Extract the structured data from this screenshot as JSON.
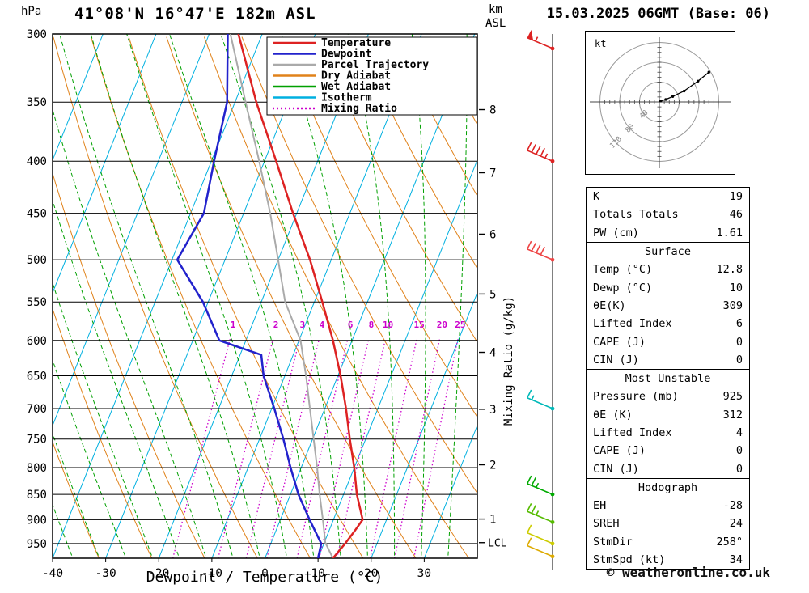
{
  "header": {
    "station_title": "41°08'N 16°47'E 182m ASL",
    "run_datetime": "15.03.2025 06GMT (Base: 06)",
    "pressure_axis_unit": "hPa",
    "altitude_axis_unit_line1": "km",
    "altitude_axis_unit_line2": "ASL"
  },
  "axes": {
    "xlabel": "Dewpoint / Temperature (°C)",
    "mixing_ratio_axis_label": "Mixing Ratio (g/kg)",
    "lcl_label": "LCL"
  },
  "colors": {
    "temperature": "#dd2222",
    "dewpoint": "#2222cc",
    "parcel": "#aaaaaa",
    "dry_adiabat": "#e0821a",
    "wet_adiabat": "#00a000",
    "isotherm": "#00b0e0",
    "mixing_ratio": "#cc00cc",
    "grid": "#000000"
  },
  "legend": {
    "items": [
      {
        "label": "Temperature",
        "color": "#dd2222",
        "dash": ""
      },
      {
        "label": "Dewpoint",
        "color": "#2222cc",
        "dash": ""
      },
      {
        "label": "Parcel Trajectory",
        "color": "#aaaaaa",
        "dash": ""
      },
      {
        "label": "Dry Adiabat",
        "color": "#e0821a",
        "dash": ""
      },
      {
        "label": "Wet Adiabat",
        "color": "#00a000",
        "dash": ""
      },
      {
        "label": "Isotherm",
        "color": "#00b0e0",
        "dash": ""
      },
      {
        "label": "Mixing Ratio",
        "color": "#cc00cc",
        "dash": "2,3"
      }
    ]
  },
  "chart_data": {
    "type": "line",
    "subtype": "skewt-log-p-sounding",
    "surface_pressure": 982,
    "pressure_ticks": [
      300,
      350,
      400,
      450,
      500,
      550,
      600,
      650,
      700,
      750,
      800,
      850,
      900,
      950
    ],
    "temp_axis": {
      "min": -40,
      "max": 40,
      "ticks": [
        -40,
        -30,
        -20,
        -10,
        0,
        10,
        20,
        30
      ]
    },
    "km_ticks": [
      1,
      2,
      3,
      4,
      5,
      6,
      7,
      8
    ],
    "lcl_pressure": 948,
    "mixing_ratio_lines": [
      1,
      2,
      3,
      4,
      6,
      8,
      10,
      15,
      20,
      25
    ],
    "temperature_profile": [
      [
        982,
        12.8
      ],
      [
        950,
        14
      ],
      [
        925,
        14.8
      ],
      [
        900,
        15.5
      ],
      [
        850,
        12.5
      ],
      [
        800,
        10
      ],
      [
        750,
        7
      ],
      [
        700,
        4
      ],
      [
        650,
        0.5
      ],
      [
        600,
        -3.6
      ],
      [
        550,
        -8.5
      ],
      [
        500,
        -14
      ],
      [
        450,
        -20.7
      ],
      [
        400,
        -27.8
      ],
      [
        350,
        -36
      ],
      [
        300,
        -44.5
      ]
    ],
    "dewpoint_profile": [
      [
        982,
        10
      ],
      [
        950,
        9.5
      ],
      [
        900,
        5.5
      ],
      [
        850,
        1.5
      ],
      [
        800,
        -2
      ],
      [
        750,
        -5.5
      ],
      [
        700,
        -9.5
      ],
      [
        650,
        -14
      ],
      [
        620,
        -16
      ],
      [
        600,
        -25
      ],
      [
        550,
        -31
      ],
      [
        500,
        -39
      ],
      [
        450,
        -37.5
      ],
      [
        400,
        -39.5
      ],
      [
        350,
        -41.5
      ],
      [
        300,
        -46.5
      ]
    ],
    "parcel_profile": [
      [
        982,
        12.8
      ],
      [
        948,
        10.2
      ],
      [
        900,
        8
      ],
      [
        850,
        5.5
      ],
      [
        800,
        3
      ],
      [
        750,
        0.2
      ],
      [
        700,
        -2.8
      ],
      [
        650,
        -6
      ],
      [
        600,
        -9.7
      ],
      [
        550,
        -15.5
      ],
      [
        500,
        -20
      ],
      [
        450,
        -25
      ],
      [
        400,
        -31
      ],
      [
        350,
        -38
      ],
      [
        300,
        -46
      ]
    ],
    "winds": [
      {
        "pressure": 310,
        "speed_kt": 55,
        "color": "#dd2222"
      },
      {
        "pressure": 400,
        "speed_kt": 45,
        "color": "#dd2222"
      },
      {
        "pressure": 500,
        "speed_kt": 40,
        "color": "#ee4444"
      },
      {
        "pressure": 700,
        "speed_kt": 15,
        "color": "#00b8b8"
      },
      {
        "pressure": 850,
        "speed_kt": 25,
        "color": "#00aa00"
      },
      {
        "pressure": 905,
        "speed_kt": 25,
        "color": "#55bb00"
      },
      {
        "pressure": 950,
        "speed_kt": 10,
        "color": "#cccc00"
      },
      {
        "pressure": 978,
        "speed_kt": 10,
        "color": "#ddaa00"
      }
    ]
  },
  "hodograph": {
    "unit_label": "kt",
    "ring_radii_kt": [
      40,
      80,
      120
    ],
    "trace_uv_kt": [
      [
        3,
        2
      ],
      [
        13,
        5
      ],
      [
        27,
        11
      ],
      [
        50,
        22
      ],
      [
        78,
        42
      ],
      [
        100,
        60
      ]
    ]
  },
  "table": {
    "sections": [
      {
        "title": null,
        "rows": [
          [
            "K",
            "19"
          ],
          [
            "Totals Totals",
            "46"
          ],
          [
            "PW (cm)",
            "1.61"
          ]
        ]
      },
      {
        "title": "Surface",
        "rows": [
          [
            "Temp (°C)",
            "12.8"
          ],
          [
            "Dewp (°C)",
            "10"
          ],
          [
            "θE(K)",
            "309"
          ],
          [
            "Lifted Index",
            "6"
          ],
          [
            "CAPE (J)",
            "0"
          ],
          [
            "CIN (J)",
            "0"
          ]
        ]
      },
      {
        "title": "Most Unstable",
        "rows": [
          [
            "Pressure (mb)",
            "925"
          ],
          [
            "θE (K)",
            "312"
          ],
          [
            "Lifted Index",
            "4"
          ],
          [
            "CAPE (J)",
            "0"
          ],
          [
            "CIN (J)",
            "0"
          ]
        ]
      },
      {
        "title": "Hodograph",
        "rows": [
          [
            "EH",
            "-28"
          ],
          [
            "SREH",
            "24"
          ],
          [
            "StmDir",
            "258°"
          ],
          [
            "StmSpd (kt)",
            "34"
          ]
        ]
      }
    ]
  },
  "footer": {
    "copyright": "© weatheronline.co.uk"
  }
}
